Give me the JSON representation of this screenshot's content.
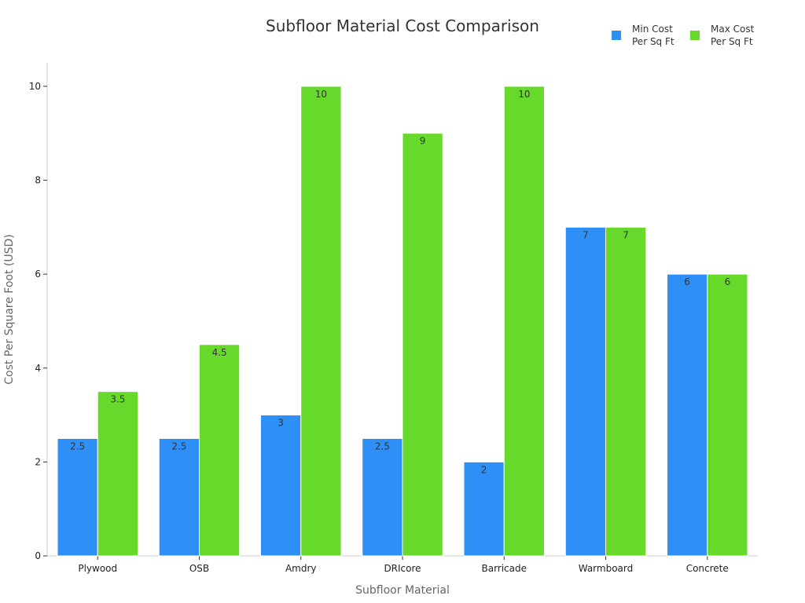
{
  "chart_data": {
    "type": "bar",
    "title": "Subfloor Material Cost Comparison",
    "xlabel": "Subfloor Material",
    "ylabel": "Cost Per Square Foot (USD)",
    "categories": [
      "Plywood",
      "OSB",
      "Amdry",
      "DRIcore",
      "Barricade",
      "Warmboard",
      "Concrete"
    ],
    "series": [
      {
        "name": "Min Cost Per Sq Ft",
        "legend_lines": [
          "Min Cost",
          "Per Sq Ft"
        ],
        "color": "#2e90f7",
        "values": [
          2.5,
          2.5,
          3,
          2.5,
          2,
          7,
          6
        ]
      },
      {
        "name": "Max Cost Per Sq Ft",
        "legend_lines": [
          "Max Cost",
          "Per Sq Ft"
        ],
        "color": "#66d92b",
        "values": [
          3.5,
          4.5,
          10,
          9,
          10,
          7,
          6
        ]
      }
    ],
    "ylim": [
      0,
      10.5
    ],
    "yticks": [
      0,
      2,
      4,
      6,
      8,
      10
    ],
    "legend_position": "top-right",
    "grid": false
  }
}
